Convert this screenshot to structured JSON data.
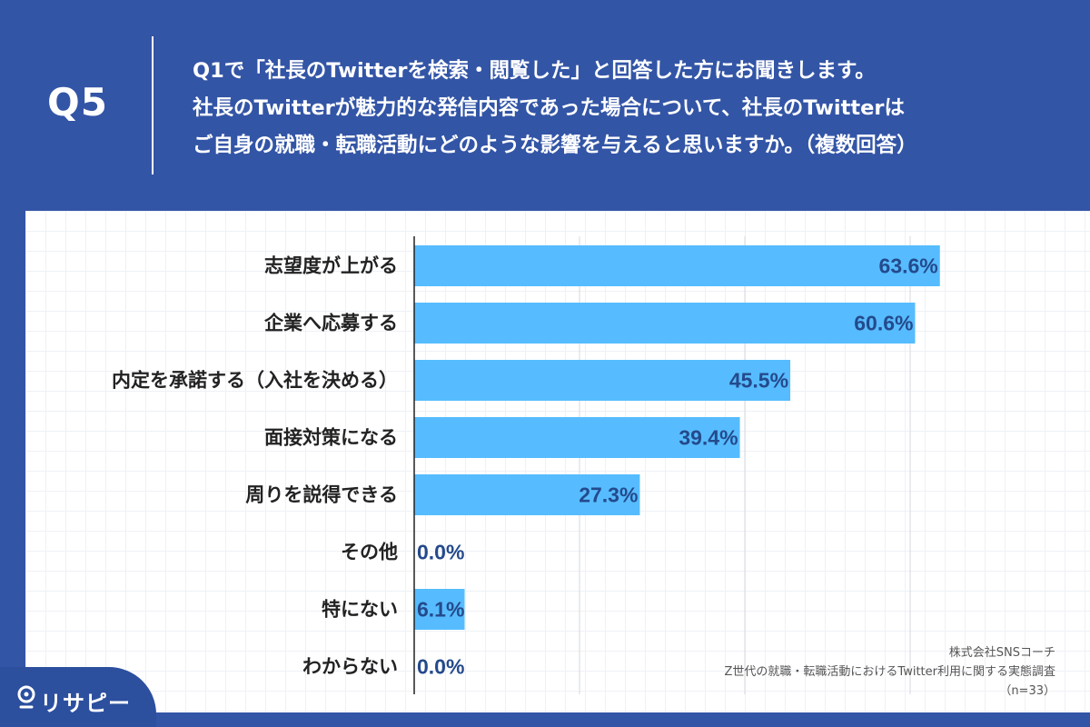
{
  "header": {
    "q_label": "Q5",
    "question_lines": [
      "Q1で「社長のTwitterを検索・閲覧した」と回答した方にお聞きします。",
      "社長のTwitterが魅力的な発信内容であった場合について、社長のTwitterは",
      "ご自身の就職・転職活動にどのような影響を与えると思いますか。（複数回答）"
    ]
  },
  "colors": {
    "background": "#3355a6",
    "bar": "#56bcff",
    "value_text": "#244a8c"
  },
  "chart_data": {
    "type": "bar",
    "orientation": "horizontal",
    "title": "",
    "xlabel": "",
    "ylabel": "",
    "xlim": [
      0,
      60
    ],
    "grid": true,
    "categories": [
      "志望度が上がる",
      "企業へ応募する",
      "内定を承諾する（入社を決める）",
      "面接対策になる",
      "周りを説得できる",
      "その他",
      "特にない",
      "わからない"
    ],
    "values": [
      63.6,
      60.6,
      45.5,
      39.4,
      27.3,
      0.0,
      6.1,
      0.0
    ],
    "value_labels": [
      "63.6%",
      "60.6%",
      "45.5%",
      "39.4%",
      "27.3%",
      "0.0%",
      "6.1%",
      "0.0%"
    ]
  },
  "source": {
    "company": "株式会社SNSコーチ",
    "survey": "Z世代の就職・転職活動におけるTwitter利用に関する実態調査",
    "sample": "（n=33）"
  },
  "logo": {
    "text": "リサピー"
  }
}
